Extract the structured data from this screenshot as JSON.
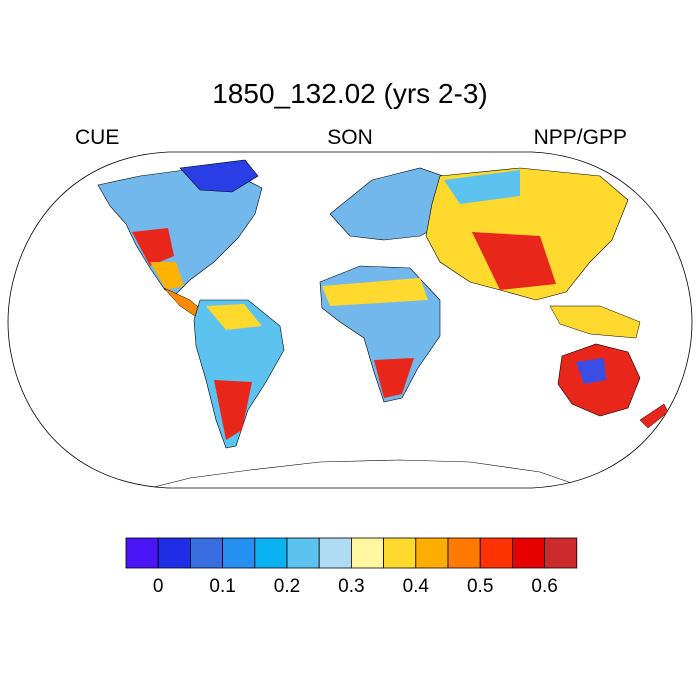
{
  "title": "1850_132.02 (yrs 2-3)",
  "left_label": "CUE",
  "center_label": "SON",
  "right_label": "NPP/GPP",
  "colorbar": {
    "colors": [
      "#4a16f5",
      "#1f2ee6",
      "#3a6ee0",
      "#2590f0",
      "#0bb2f2",
      "#5cc2f0",
      "#afdcf2",
      "#fff6a0",
      "#ffd92e",
      "#ffad00",
      "#ff7a00",
      "#ff3300",
      "#e60000",
      "#cc2b2b"
    ],
    "tick_labels": [
      "0",
      "0.1",
      "0.2",
      "0.3",
      "0.4",
      "0.5",
      "0.6"
    ]
  },
  "map": {
    "projection": "robinson",
    "variable": "CUE",
    "value_range": [
      0,
      0.65
    ]
  }
}
